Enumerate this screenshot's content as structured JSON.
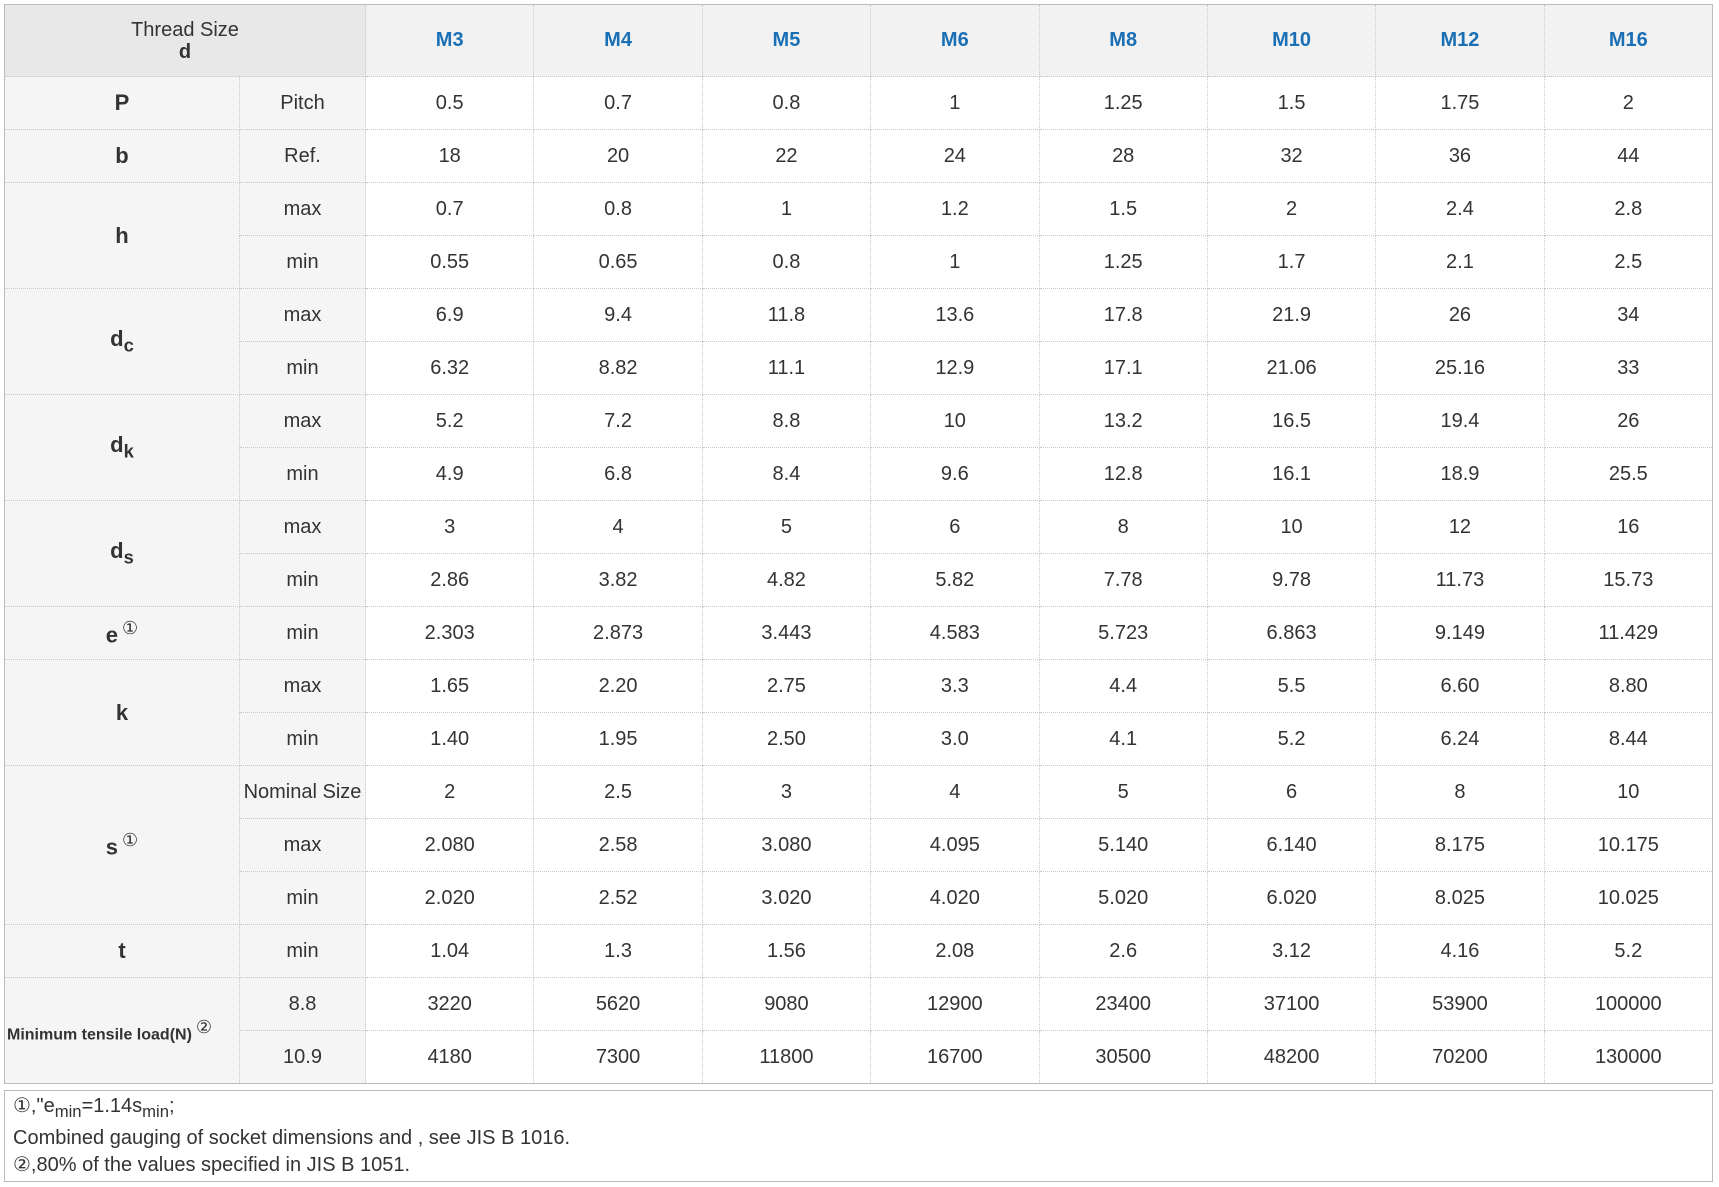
{
  "header": {
    "label": "Thread Size",
    "symbol": "d",
    "sizes": [
      "M3",
      "M4",
      "M5",
      "M6",
      "M8",
      "M10",
      "M12",
      "M16"
    ]
  },
  "groups": [
    {
      "symbol": {
        "text": "P"
      },
      "rows": [
        {
          "label": "Pitch",
          "values": [
            "0.5",
            "0.7",
            "0.8",
            "1",
            "1.25",
            "1.5",
            "1.75",
            "2"
          ]
        }
      ]
    },
    {
      "symbol": {
        "text": "b"
      },
      "rows": [
        {
          "label": "Ref.",
          "values": [
            "18",
            "20",
            "22",
            "24",
            "28",
            "32",
            "36",
            "44"
          ]
        }
      ]
    },
    {
      "symbol": {
        "text": "h"
      },
      "rows": [
        {
          "label": "max",
          "values": [
            "0.7",
            "0.8",
            "1",
            "1.2",
            "1.5",
            "2",
            "2.4",
            "2.8"
          ]
        },
        {
          "label": "min",
          "values": [
            "0.55",
            "0.65",
            "0.8",
            "1",
            "1.25",
            "1.7",
            "2.1",
            "2.5"
          ]
        }
      ]
    },
    {
      "symbol": {
        "text": "d",
        "sub": "c"
      },
      "rows": [
        {
          "label": "max",
          "values": [
            "6.9",
            "9.4",
            "11.8",
            "13.6",
            "17.8",
            "21.9",
            "26",
            "34"
          ]
        },
        {
          "label": "min",
          "values": [
            "6.32",
            "8.82",
            "11.1",
            "12.9",
            "17.1",
            "21.06",
            "25.16",
            "33"
          ]
        }
      ]
    },
    {
      "symbol": {
        "text": "d",
        "sub": "k"
      },
      "rows": [
        {
          "label": "max",
          "values": [
            "5.2",
            "7.2",
            "8.8",
            "10",
            "13.2",
            "16.5",
            "19.4",
            "26"
          ]
        },
        {
          "label": "min",
          "values": [
            "4.9",
            "6.8",
            "8.4",
            "9.6",
            "12.8",
            "16.1",
            "18.9",
            "25.5"
          ]
        }
      ]
    },
    {
      "symbol": {
        "text": "d",
        "sub": "s"
      },
      "rows": [
        {
          "label": "max",
          "values": [
            "3",
            "4",
            "5",
            "6",
            "8",
            "10",
            "12",
            "16"
          ]
        },
        {
          "label": "min",
          "values": [
            "2.86",
            "3.82",
            "4.82",
            "5.82",
            "7.78",
            "9.78",
            "11.73",
            "15.73"
          ]
        }
      ]
    },
    {
      "symbol": {
        "text": "e",
        "mark": "①"
      },
      "rows": [
        {
          "label": "min",
          "values": [
            "2.303",
            "2.873",
            "3.443",
            "4.583",
            "5.723",
            "6.863",
            "9.149",
            "11.429"
          ]
        }
      ]
    },
    {
      "symbol": {
        "text": "k"
      },
      "rows": [
        {
          "label": "max",
          "values": [
            "1.65",
            "2.20",
            "2.75",
            "3.3",
            "4.4",
            "5.5",
            "6.60",
            "8.80"
          ]
        },
        {
          "label": "min",
          "values": [
            "1.40",
            "1.95",
            "2.50",
            "3.0",
            "4.1",
            "5.2",
            "6.24",
            "8.44"
          ]
        }
      ]
    },
    {
      "symbol": {
        "text": "s",
        "mark": "①"
      },
      "rows": [
        {
          "label": "Nominal Size",
          "values": [
            "2",
            "2.5",
            "3",
            "4",
            "5",
            "6",
            "8",
            "10"
          ]
        },
        {
          "label": "max",
          "values": [
            "2.080",
            "2.58",
            "3.080",
            "4.095",
            "5.140",
            "6.140",
            "8.175",
            "10.175"
          ]
        },
        {
          "label": "min",
          "values": [
            "2.020",
            "2.52",
            "3.020",
            "4.020",
            "5.020",
            "6.020",
            "8.025",
            "10.025"
          ]
        }
      ]
    },
    {
      "symbol": {
        "text": "t"
      },
      "rows": [
        {
          "label": "min",
          "values": [
            "1.04",
            "1.3",
            "1.56",
            "2.08",
            "2.6",
            "3.12",
            "4.16",
            "5.2"
          ]
        }
      ]
    },
    {
      "symbol": {
        "text": "Minimum tensile load(N)",
        "mark": "②"
      },
      "rows": [
        {
          "label": "8.8",
          "values": [
            "3220",
            "5620",
            "9080",
            "12900",
            "23400",
            "37100",
            "53900",
            "100000"
          ]
        },
        {
          "label": "10.9",
          "values": [
            "4180",
            "7300",
            "11800",
            "16700",
            "30500",
            "48200",
            "70200",
            "130000"
          ]
        }
      ]
    }
  ],
  "notes": [
    [
      {
        "text": "①,\"e"
      },
      {
        "sub": "min"
      },
      {
        "text": "=1.14s"
      },
      {
        "sub": "min"
      },
      {
        "text": ";"
      }
    ],
    [
      {
        "text": "Combined gauging of socket dimensions and , see JIS B 1016."
      }
    ],
    [
      {
        "text": "②,80% of the values specified in JIS B 1051."
      }
    ]
  ]
}
